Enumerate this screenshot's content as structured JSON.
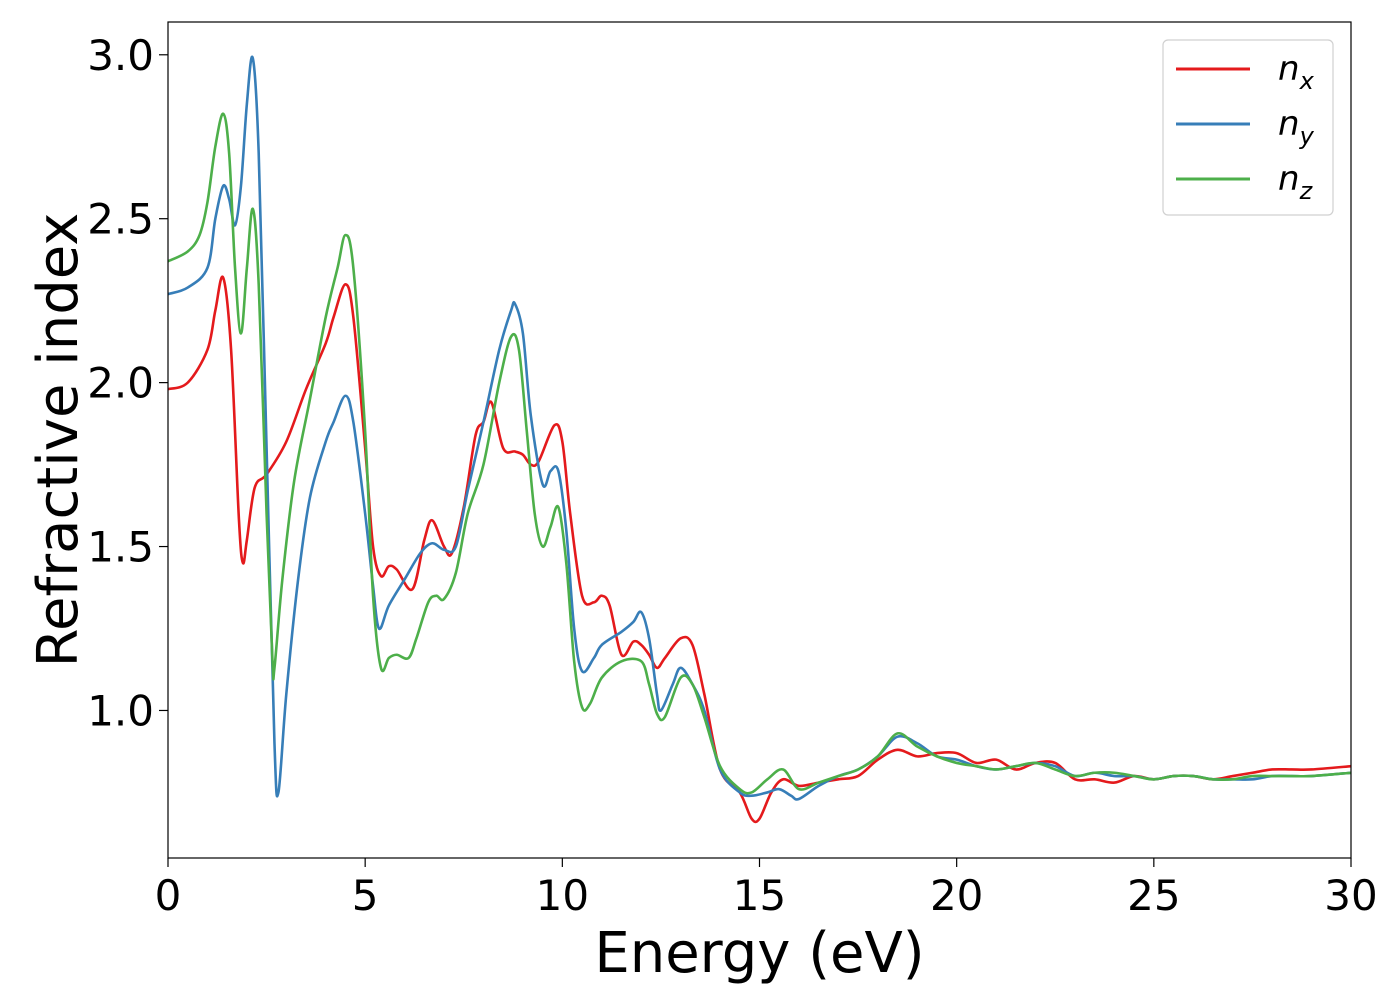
{
  "chart_data": {
    "type": "line",
    "xlabel": "Energy (eV)",
    "ylabel": "Refractive index",
    "xlim": [
      0,
      30
    ],
    "ylim": [
      0.55,
      3.1
    ],
    "xticks": [
      0,
      5,
      10,
      15,
      20,
      25,
      30
    ],
    "xtick_labels": [
      "0",
      "5",
      "10",
      "15",
      "20",
      "25",
      "30"
    ],
    "yticks": [
      1.0,
      1.5,
      2.0,
      2.5,
      3.0
    ],
    "ytick_labels": [
      "1.0",
      "1.5",
      "2.0",
      "2.5",
      "3.0"
    ],
    "grid": false,
    "legend_position": "top-right",
    "series": [
      {
        "name": "n",
        "subscript": "x",
        "color": "#e41a1c",
        "points": [
          [
            0,
            1.98
          ],
          [
            0.5,
            2.0
          ],
          [
            1.0,
            2.1
          ],
          [
            1.2,
            2.22
          ],
          [
            1.4,
            2.32
          ],
          [
            1.6,
            2.1
          ],
          [
            1.8,
            1.58
          ],
          [
            1.9,
            1.45
          ],
          [
            2.0,
            1.52
          ],
          [
            2.2,
            1.68
          ],
          [
            2.5,
            1.72
          ],
          [
            3.0,
            1.82
          ],
          [
            3.5,
            1.98
          ],
          [
            4.0,
            2.12
          ],
          [
            4.2,
            2.2
          ],
          [
            4.5,
            2.3
          ],
          [
            4.7,
            2.2
          ],
          [
            5.0,
            1.8
          ],
          [
            5.2,
            1.5
          ],
          [
            5.4,
            1.41
          ],
          [
            5.6,
            1.44
          ],
          [
            5.8,
            1.43
          ],
          [
            6.2,
            1.37
          ],
          [
            6.5,
            1.52
          ],
          [
            6.7,
            1.58
          ],
          [
            7.0,
            1.5
          ],
          [
            7.2,
            1.48
          ],
          [
            7.5,
            1.62
          ],
          [
            7.8,
            1.84
          ],
          [
            8.0,
            1.88
          ],
          [
            8.2,
            1.94
          ],
          [
            8.5,
            1.8
          ],
          [
            8.8,
            1.79
          ],
          [
            9.0,
            1.78
          ],
          [
            9.2,
            1.75
          ],
          [
            9.4,
            1.76
          ],
          [
            9.8,
            1.87
          ],
          [
            10.0,
            1.82
          ],
          [
            10.2,
            1.6
          ],
          [
            10.5,
            1.35
          ],
          [
            10.8,
            1.33
          ],
          [
            11.0,
            1.35
          ],
          [
            11.2,
            1.32
          ],
          [
            11.5,
            1.17
          ],
          [
            11.8,
            1.21
          ],
          [
            12.0,
            1.2
          ],
          [
            12.2,
            1.17
          ],
          [
            12.4,
            1.13
          ],
          [
            12.6,
            1.16
          ],
          [
            13.0,
            1.22
          ],
          [
            13.3,
            1.2
          ],
          [
            13.6,
            1.05
          ],
          [
            14.0,
            0.82
          ],
          [
            14.5,
            0.75
          ],
          [
            14.8,
            0.67
          ],
          [
            15.0,
            0.67
          ],
          [
            15.3,
            0.75
          ],
          [
            15.6,
            0.79
          ],
          [
            16.0,
            0.77
          ],
          [
            16.5,
            0.78
          ],
          [
            17.0,
            0.79
          ],
          [
            17.5,
            0.8
          ],
          [
            18.0,
            0.85
          ],
          [
            18.5,
            0.88
          ],
          [
            19.0,
            0.86
          ],
          [
            19.5,
            0.87
          ],
          [
            20.0,
            0.87
          ],
          [
            20.5,
            0.84
          ],
          [
            21.0,
            0.85
          ],
          [
            21.5,
            0.82
          ],
          [
            22.0,
            0.84
          ],
          [
            22.5,
            0.84
          ],
          [
            23.0,
            0.79
          ],
          [
            23.5,
            0.79
          ],
          [
            24.0,
            0.78
          ],
          [
            24.5,
            0.8
          ],
          [
            25.0,
            0.79
          ],
          [
            25.5,
            0.8
          ],
          [
            26.0,
            0.8
          ],
          [
            26.5,
            0.79
          ],
          [
            27.0,
            0.8
          ],
          [
            27.5,
            0.81
          ],
          [
            28.0,
            0.82
          ],
          [
            28.5,
            0.82
          ],
          [
            29.0,
            0.82
          ],
          [
            30.0,
            0.83
          ]
        ]
      },
      {
        "name": "n",
        "subscript": "y",
        "color": "#377eb8",
        "points": [
          [
            0,
            2.27
          ],
          [
            0.5,
            2.29
          ],
          [
            1.0,
            2.35
          ],
          [
            1.2,
            2.5
          ],
          [
            1.4,
            2.6
          ],
          [
            1.55,
            2.56
          ],
          [
            1.7,
            2.48
          ],
          [
            1.85,
            2.6
          ],
          [
            2.0,
            2.85
          ],
          [
            2.15,
            2.99
          ],
          [
            2.3,
            2.7
          ],
          [
            2.5,
            1.8
          ],
          [
            2.7,
            0.9
          ],
          [
            2.8,
            0.75
          ],
          [
            3.0,
            1.05
          ],
          [
            3.3,
            1.4
          ],
          [
            3.6,
            1.65
          ],
          [
            4.0,
            1.82
          ],
          [
            4.2,
            1.88
          ],
          [
            4.5,
            1.96
          ],
          [
            4.7,
            1.88
          ],
          [
            5.0,
            1.6
          ],
          [
            5.2,
            1.38
          ],
          [
            5.35,
            1.25
          ],
          [
            5.6,
            1.32
          ],
          [
            6.0,
            1.4
          ],
          [
            6.4,
            1.48
          ],
          [
            6.7,
            1.51
          ],
          [
            7.0,
            1.49
          ],
          [
            7.3,
            1.5
          ],
          [
            7.6,
            1.67
          ],
          [
            8.0,
            1.88
          ],
          [
            8.4,
            2.1
          ],
          [
            8.7,
            2.22
          ],
          [
            8.8,
            2.24
          ],
          [
            9.0,
            2.15
          ],
          [
            9.2,
            1.9
          ],
          [
            9.5,
            1.69
          ],
          [
            9.7,
            1.73
          ],
          [
            9.9,
            1.73
          ],
          [
            10.1,
            1.55
          ],
          [
            10.3,
            1.25
          ],
          [
            10.5,
            1.12
          ],
          [
            10.8,
            1.16
          ],
          [
            11.0,
            1.2
          ],
          [
            11.5,
            1.24
          ],
          [
            11.8,
            1.27
          ],
          [
            12.0,
            1.3
          ],
          [
            12.2,
            1.22
          ],
          [
            12.4,
            1.05
          ],
          [
            12.5,
            1.0
          ],
          [
            12.8,
            1.08
          ],
          [
            13.0,
            1.13
          ],
          [
            13.3,
            1.08
          ],
          [
            13.6,
            1.0
          ],
          [
            14.0,
            0.82
          ],
          [
            14.5,
            0.75
          ],
          [
            14.8,
            0.74
          ],
          [
            15.2,
            0.75
          ],
          [
            15.5,
            0.76
          ],
          [
            15.8,
            0.74
          ],
          [
            16.0,
            0.73
          ],
          [
            16.5,
            0.77
          ],
          [
            17.0,
            0.8
          ],
          [
            17.5,
            0.82
          ],
          [
            18.0,
            0.86
          ],
          [
            18.5,
            0.92
          ],
          [
            19.0,
            0.9
          ],
          [
            19.5,
            0.86
          ],
          [
            20.0,
            0.85
          ],
          [
            20.5,
            0.83
          ],
          [
            21.0,
            0.82
          ],
          [
            21.5,
            0.83
          ],
          [
            22.0,
            0.84
          ],
          [
            22.5,
            0.83
          ],
          [
            23.0,
            0.8
          ],
          [
            23.5,
            0.81
          ],
          [
            24.0,
            0.8
          ],
          [
            24.5,
            0.8
          ],
          [
            25.0,
            0.79
          ],
          [
            25.5,
            0.8
          ],
          [
            26.0,
            0.8
          ],
          [
            26.5,
            0.79
          ],
          [
            27.0,
            0.79
          ],
          [
            27.5,
            0.79
          ],
          [
            28.0,
            0.8
          ],
          [
            28.5,
            0.8
          ],
          [
            29.0,
            0.8
          ],
          [
            30.0,
            0.81
          ]
        ]
      },
      {
        "name": "n",
        "subscript": "z",
        "color": "#4daf4a",
        "points": [
          [
            0,
            2.37
          ],
          [
            0.5,
            2.4
          ],
          [
            0.8,
            2.45
          ],
          [
            1.0,
            2.55
          ],
          [
            1.2,
            2.72
          ],
          [
            1.4,
            2.82
          ],
          [
            1.55,
            2.7
          ],
          [
            1.7,
            2.35
          ],
          [
            1.85,
            2.15
          ],
          [
            2.0,
            2.35
          ],
          [
            2.15,
            2.53
          ],
          [
            2.3,
            2.3
          ],
          [
            2.5,
            1.6
          ],
          [
            2.65,
            1.15
          ],
          [
            2.7,
            1.13
          ],
          [
            2.9,
            1.4
          ],
          [
            3.2,
            1.7
          ],
          [
            3.6,
            1.95
          ],
          [
            4.0,
            2.2
          ],
          [
            4.3,
            2.35
          ],
          [
            4.5,
            2.45
          ],
          [
            4.7,
            2.35
          ],
          [
            5.0,
            1.85
          ],
          [
            5.2,
            1.35
          ],
          [
            5.4,
            1.13
          ],
          [
            5.6,
            1.16
          ],
          [
            5.8,
            1.17
          ],
          [
            6.1,
            1.16
          ],
          [
            6.3,
            1.22
          ],
          [
            6.6,
            1.33
          ],
          [
            6.8,
            1.35
          ],
          [
            7.0,
            1.34
          ],
          [
            7.3,
            1.42
          ],
          [
            7.6,
            1.6
          ],
          [
            8.0,
            1.75
          ],
          [
            8.4,
            2.0
          ],
          [
            8.7,
            2.14
          ],
          [
            8.9,
            2.1
          ],
          [
            9.1,
            1.85
          ],
          [
            9.3,
            1.6
          ],
          [
            9.5,
            1.5
          ],
          [
            9.7,
            1.56
          ],
          [
            9.9,
            1.62
          ],
          [
            10.1,
            1.45
          ],
          [
            10.3,
            1.15
          ],
          [
            10.5,
            1.01
          ],
          [
            10.7,
            1.02
          ],
          [
            11.0,
            1.1
          ],
          [
            11.5,
            1.15
          ],
          [
            12.0,
            1.15
          ],
          [
            12.2,
            1.08
          ],
          [
            12.4,
            0.99
          ],
          [
            12.6,
            0.98
          ],
          [
            13.0,
            1.1
          ],
          [
            13.3,
            1.08
          ],
          [
            13.6,
            0.98
          ],
          [
            14.0,
            0.83
          ],
          [
            14.5,
            0.76
          ],
          [
            14.8,
            0.75
          ],
          [
            15.2,
            0.79
          ],
          [
            15.6,
            0.82
          ],
          [
            16.0,
            0.76
          ],
          [
            16.5,
            0.78
          ],
          [
            17.0,
            0.8
          ],
          [
            17.5,
            0.82
          ],
          [
            18.0,
            0.86
          ],
          [
            18.5,
            0.93
          ],
          [
            19.0,
            0.89
          ],
          [
            19.5,
            0.86
          ],
          [
            20.0,
            0.84
          ],
          [
            20.5,
            0.83
          ],
          [
            21.0,
            0.82
          ],
          [
            21.5,
            0.83
          ],
          [
            22.0,
            0.84
          ],
          [
            22.5,
            0.82
          ],
          [
            23.0,
            0.8
          ],
          [
            23.5,
            0.81
          ],
          [
            24.0,
            0.81
          ],
          [
            24.5,
            0.8
          ],
          [
            25.0,
            0.79
          ],
          [
            25.5,
            0.8
          ],
          [
            26.0,
            0.8
          ],
          [
            26.5,
            0.79
          ],
          [
            27.0,
            0.79
          ],
          [
            27.5,
            0.8
          ],
          [
            28.0,
            0.8
          ],
          [
            28.5,
            0.8
          ],
          [
            29.0,
            0.8
          ],
          [
            30.0,
            0.81
          ]
        ]
      }
    ]
  }
}
